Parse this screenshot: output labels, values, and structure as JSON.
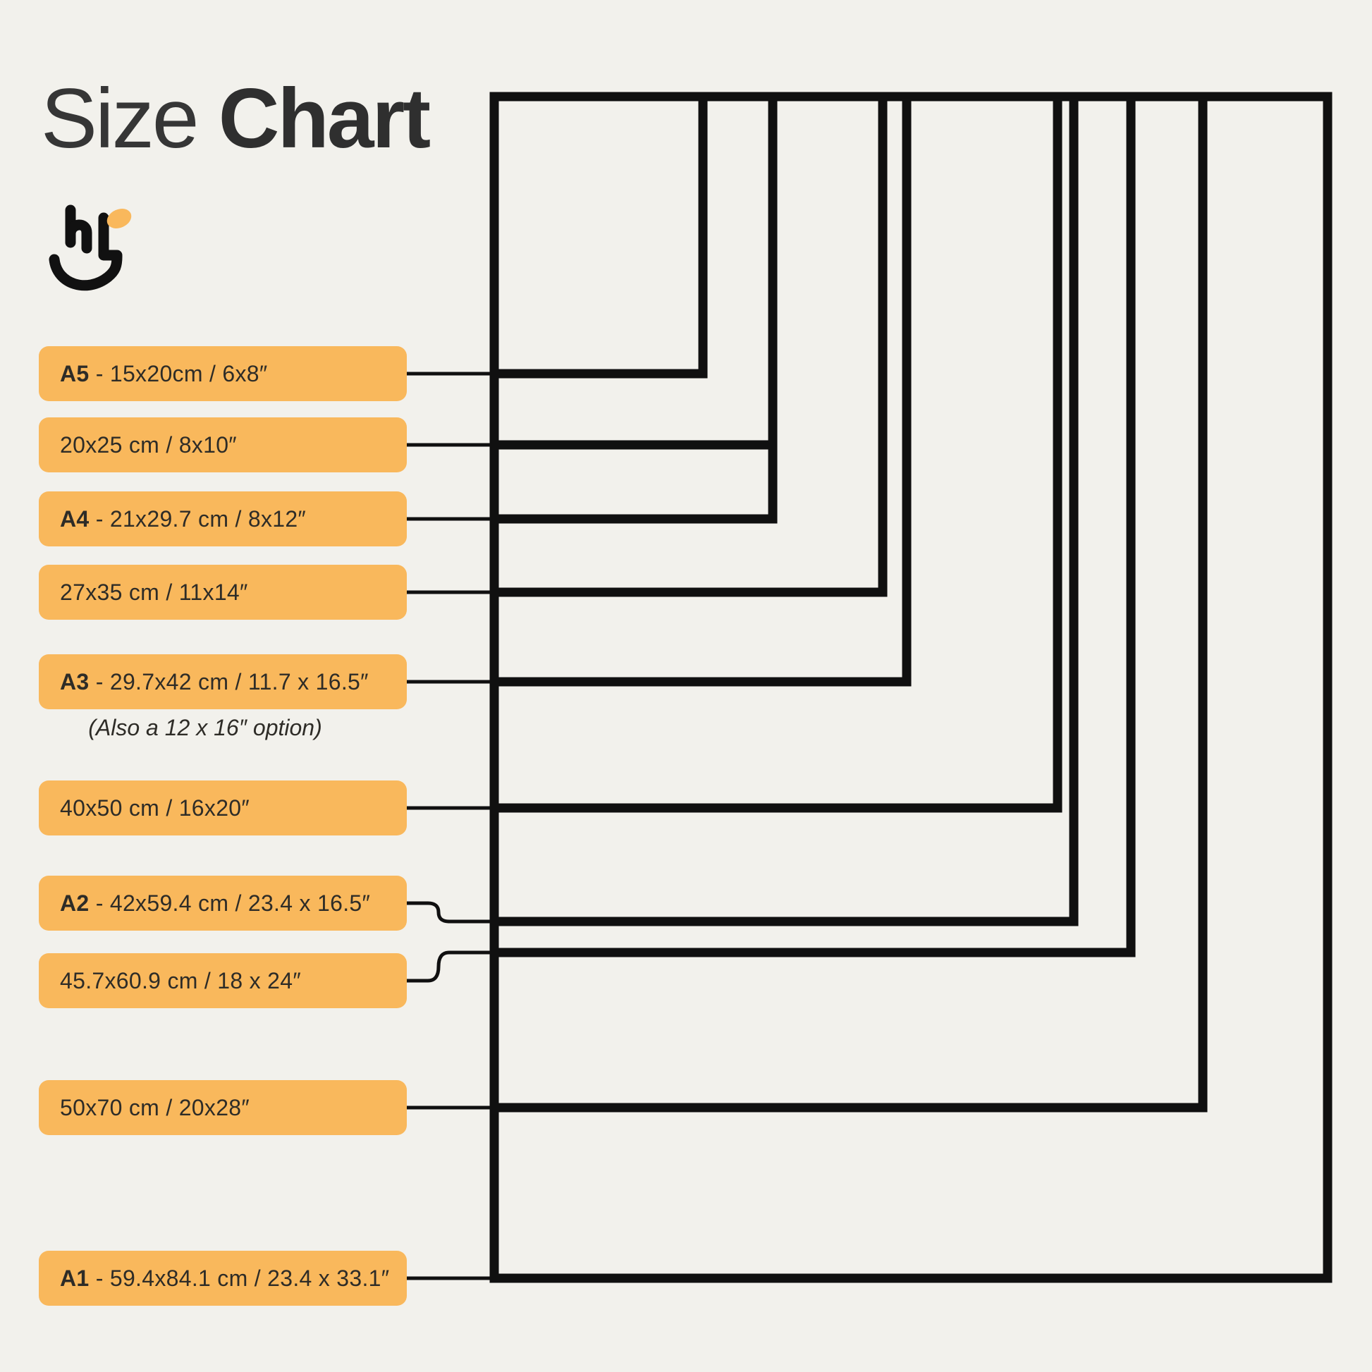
{
  "title": {
    "regular": "Size ",
    "bold": "Chart"
  },
  "logo": {
    "description": "smiling-hand-brand-mark",
    "accent_color": "#f9b85c",
    "ink_color": "#111111"
  },
  "colors": {
    "background": "#f2f1ec",
    "label_fill": "#f9b85c",
    "line": "#101010",
    "text": "#2e2c27",
    "title_text": "#363636"
  },
  "note": "(Also a 12 x 16″ option)",
  "sizes": [
    {
      "id": "a5",
      "prefix": "A5",
      "text": " - 15x20cm / 6x8″"
    },
    {
      "id": "20x25",
      "prefix": "",
      "text": "20x25 cm / 8x10″"
    },
    {
      "id": "a4",
      "prefix": "A4",
      "text": " - 21x29.7 cm / 8x12″"
    },
    {
      "id": "27x35",
      "prefix": "",
      "text": "27x35 cm / 11x14″"
    },
    {
      "id": "a3",
      "prefix": "A3",
      "text": " - 29.7x42 cm / 11.7 x 16.5″"
    },
    {
      "id": "40x50",
      "prefix": "",
      "text": "40x50 cm / 16x20″"
    },
    {
      "id": "a2",
      "prefix": "A2",
      "text": " - 42x59.4 cm / 23.4 x 16.5″"
    },
    {
      "id": "45x60",
      "prefix": "",
      "text": "45.7x60.9 cm / 18 x 24″"
    },
    {
      "id": "50x70",
      "prefix": "",
      "text": "50x70 cm / 20x28″"
    },
    {
      "id": "a1",
      "prefix": "A1",
      "text": " - 59.4x84.1 cm / 23.4 x 33.1″"
    }
  ]
}
